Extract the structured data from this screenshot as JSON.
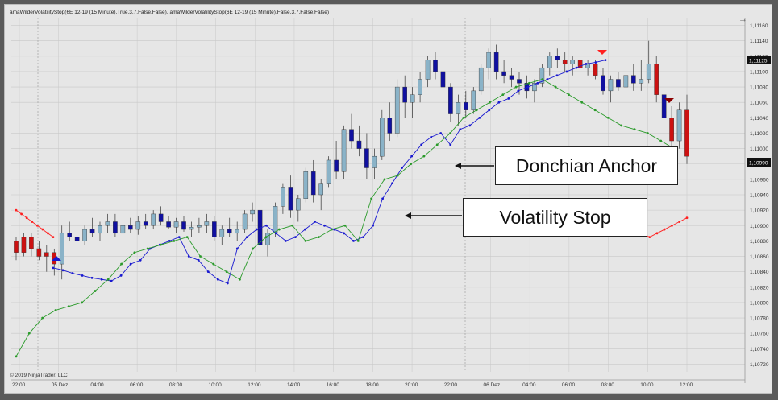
{
  "chart_data": {
    "type": "candlestick",
    "title": "amaWilderVolatilityStop(6E 12-19 (15 Minute),True,3,7,False,False), amaWilderVolatilityStop(6E 12-19 (15 Minute),False,3,7,False,False)",
    "copyright": "© 2019 NinjaTrader, LLC",
    "x_tick_labels": [
      "22:00",
      "05 Dez",
      "04:00",
      "06:00",
      "08:00",
      "10:00",
      "12:00",
      "14:00",
      "16:00",
      "18:00",
      "20:00",
      "22:00",
      "06 Dez",
      "04:00",
      "06:00",
      "08:00",
      "10:00",
      "12:00"
    ],
    "y_tick_labels": [
      "1,11160",
      "1,11140",
      "1,11120",
      "1,11100",
      "1,11080",
      "1,11060",
      "1,11040",
      "1,11020",
      "1,11000",
      "1,10980",
      "1,10960",
      "1,10940",
      "1,10920",
      "1,10900",
      "1,10880",
      "1,10860",
      "1,10840",
      "1,10820",
      "1,10800",
      "1,10780",
      "1,10760",
      "1,10740",
      "1,10720"
    ],
    "ylim": [
      1.1071,
      1.1117
    ],
    "price_markers": [
      "1,11125",
      "1,10990"
    ],
    "series": [
      {
        "name": "candles",
        "ohlc": [
          [
            1.1088,
            1.10885,
            1.10855,
            1.10865
          ],
          [
            1.10865,
            1.1089,
            1.1086,
            1.10885
          ],
          [
            1.10885,
            1.1089,
            1.1086,
            1.1087
          ],
          [
            1.1087,
            1.1088,
            1.10855,
            1.1086
          ],
          [
            1.1086,
            1.10875,
            1.1084,
            1.10865
          ],
          [
            1.10865,
            1.1087,
            1.10835,
            1.1085
          ],
          [
            1.1085,
            1.109,
            1.1083,
            1.1089
          ],
          [
            1.1089,
            1.10905,
            1.1088,
            1.10885
          ],
          [
            1.10885,
            1.1089,
            1.1087,
            1.1088
          ],
          [
            1.1088,
            1.109,
            1.10875,
            1.10895
          ],
          [
            1.10895,
            1.1091,
            1.10885,
            1.1089
          ],
          [
            1.1089,
            1.10905,
            1.1088,
            1.109
          ],
          [
            1.109,
            1.10915,
            1.1089,
            1.10905
          ],
          [
            1.10905,
            1.10915,
            1.10885,
            1.1089
          ],
          [
            1.1089,
            1.1091,
            1.1088,
            1.109
          ],
          [
            1.109,
            1.1091,
            1.1089,
            1.10895
          ],
          [
            1.10895,
            1.10912,
            1.10888,
            1.10905
          ],
          [
            1.10905,
            1.10915,
            1.10895,
            1.109
          ],
          [
            1.109,
            1.1092,
            1.10895,
            1.10915
          ],
          [
            1.10915,
            1.10925,
            1.109,
            1.10905
          ],
          [
            1.10905,
            1.10912,
            1.10895,
            1.10898
          ],
          [
            1.10898,
            1.1091,
            1.1089,
            1.10905
          ],
          [
            1.10905,
            1.10912,
            1.10892,
            1.10895
          ],
          [
            1.10895,
            1.10905,
            1.10885,
            1.10898
          ],
          [
            1.10898,
            1.1091,
            1.1089,
            1.109
          ],
          [
            1.109,
            1.10915,
            1.1089,
            1.10905
          ],
          [
            1.10905,
            1.10912,
            1.1088,
            1.10885
          ],
          [
            1.10885,
            1.109,
            1.10875,
            1.10895
          ],
          [
            1.10895,
            1.1091,
            1.10885,
            1.1089
          ],
          [
            1.1089,
            1.10905,
            1.1088,
            1.10895
          ],
          [
            1.10895,
            1.1092,
            1.1089,
            1.10915
          ],
          [
            1.10915,
            1.1093,
            1.10905,
            1.1092
          ],
          [
            1.1092,
            1.10925,
            1.1087,
            1.10875
          ],
          [
            1.10875,
            1.10895,
            1.1086,
            1.1089
          ],
          [
            1.1089,
            1.1093,
            1.10885,
            1.10925
          ],
          [
            1.10925,
            1.10955,
            1.10915,
            1.1095
          ],
          [
            1.1095,
            1.10965,
            1.1091,
            1.1092
          ],
          [
            1.1092,
            1.1094,
            1.10905,
            1.10935
          ],
          [
            1.10935,
            1.10975,
            1.1093,
            1.1097
          ],
          [
            1.1097,
            1.10985,
            1.1093,
            1.1094
          ],
          [
            1.1094,
            1.1096,
            1.1092,
            1.10955
          ],
          [
            1.10955,
            1.1099,
            1.1095,
            1.10985
          ],
          [
            1.10985,
            1.1101,
            1.1096,
            1.1097
          ],
          [
            1.1097,
            1.1103,
            1.1096,
            1.11025
          ],
          [
            1.11025,
            1.11045,
            1.11,
            1.1101
          ],
          [
            1.1101,
            1.1103,
            1.1099,
            1.11
          ],
          [
            1.11,
            1.1102,
            1.1096,
            1.10975
          ],
          [
            1.10975,
            1.11,
            1.1096,
            1.1099
          ],
          [
            1.1099,
            1.1105,
            1.10985,
            1.1104
          ],
          [
            1.1104,
            1.1106,
            1.1101,
            1.1102
          ],
          [
            1.1102,
            1.1109,
            1.11015,
            1.1108
          ],
          [
            1.1108,
            1.11095,
            1.1104,
            1.1106
          ],
          [
            1.1106,
            1.1108,
            1.1104,
            1.1107
          ],
          [
            1.1107,
            1.111,
            1.1106,
            1.1109
          ],
          [
            1.1109,
            1.1112,
            1.1108,
            1.11115
          ],
          [
            1.11115,
            1.11125,
            1.1109,
            1.111
          ],
          [
            1.111,
            1.1111,
            1.1107,
            1.1108
          ],
          [
            1.1108,
            1.11085,
            1.11035,
            1.11045
          ],
          [
            1.11045,
            1.1107,
            1.1103,
            1.1106
          ],
          [
            1.1106,
            1.11075,
            1.1104,
            1.1105
          ],
          [
            1.1105,
            1.1108,
            1.11045,
            1.11075
          ],
          [
            1.11075,
            1.1111,
            1.1107,
            1.11105
          ],
          [
            1.11105,
            1.1113,
            1.1109,
            1.11125
          ],
          [
            1.11125,
            1.11135,
            1.1109,
            1.111
          ],
          [
            1.111,
            1.11115,
            1.11085,
            1.11095
          ],
          [
            1.11095,
            1.11105,
            1.1108,
            1.1109
          ],
          [
            1.1109,
            1.111,
            1.1107,
            1.11085
          ],
          [
            1.11085,
            1.11095,
            1.11065,
            1.11075
          ],
          [
            1.11075,
            1.1109,
            1.1106,
            1.11085
          ],
          [
            1.11085,
            1.1111,
            1.1108,
            1.11105
          ],
          [
            1.11105,
            1.11125,
            1.11095,
            1.1112
          ],
          [
            1.1112,
            1.1113,
            1.11105,
            1.11115
          ],
          [
            1.11115,
            1.11125,
            1.111,
            1.1111
          ],
          [
            1.1111,
            1.1112,
            1.11095,
            1.11115
          ],
          [
            1.11115,
            1.1112,
            1.111,
            1.11105
          ],
          [
            1.11105,
            1.11115,
            1.11095,
            1.1111
          ],
          [
            1.1111,
            1.11115,
            1.1109,
            1.11095
          ],
          [
            1.11095,
            1.11105,
            1.1107,
            1.11075
          ],
          [
            1.11075,
            1.11095,
            1.1106,
            1.1109
          ],
          [
            1.1109,
            1.111,
            1.11075,
            1.1108
          ],
          [
            1.1108,
            1.111,
            1.1107,
            1.11095
          ],
          [
            1.11095,
            1.1111,
            1.11075,
            1.11085
          ],
          [
            1.11085,
            1.11115,
            1.11075,
            1.1109
          ],
          [
            1.1109,
            1.1114,
            1.11085,
            1.1111
          ],
          [
            1.1111,
            1.1112,
            1.1106,
            1.1107
          ],
          [
            1.1107,
            1.1108,
            1.1103,
            1.1104
          ],
          [
            1.1104,
            1.11055,
            1.11,
            1.1101
          ],
          [
            1.1101,
            1.1106,
            1.11,
            1.1105
          ],
          [
            1.1105,
            1.1107,
            1.1098,
            1.1099
          ]
        ]
      },
      {
        "name": "volatility_stop_upper",
        "values": [
          1.1092,
          1.10915,
          1.1091,
          1.10905,
          1.109,
          1.10895,
          1.1089,
          1.10885,
          1.1089,
          1.10895,
          1.109,
          1.10905,
          1.1091
        ]
      },
      {
        "name": "volatility_stop_lower",
        "values": [
          1.10845,
          1.10842,
          1.10838,
          1.10835,
          1.10832,
          1.1083,
          1.10828,
          1.10835,
          1.1085,
          1.10855,
          1.1087,
          1.10875,
          1.1088,
          1.10885,
          1.1086,
          1.10855,
          1.1084,
          1.1083,
          1.10825,
          1.1087,
          1.10885,
          1.10895,
          1.109,
          1.1089,
          1.1088,
          1.10885,
          1.10895,
          1.10905,
          1.109,
          1.10895,
          1.1089,
          1.1088,
          1.10885,
          1.109,
          1.10935,
          1.10955,
          1.10975,
          1.1099,
          1.11005,
          1.11015,
          1.1102,
          1.11005,
          1.11025,
          1.1103,
          1.1104,
          1.1105,
          1.1106,
          1.11065,
          1.11075,
          1.1108,
          1.11085,
          1.1109,
          1.11095,
          1.111,
          1.11105,
          1.1111,
          1.11112,
          1.11115
        ]
      },
      {
        "name": "donchian_anchor",
        "values": [
          1.1073,
          1.1076,
          1.1078,
          1.1079,
          1.10795,
          1.108,
          1.10815,
          1.1083,
          1.1085,
          1.10865,
          1.1087,
          1.10875,
          1.1088,
          1.10885,
          1.1086,
          1.1085,
          1.1084,
          1.1083,
          1.1087,
          1.10885,
          1.10895,
          1.109,
          1.1088,
          1.10885,
          1.10895,
          1.109,
          1.1088,
          1.10935,
          1.1096,
          1.10965,
          1.1098,
          1.1099,
          1.11005,
          1.1102,
          1.1104,
          1.1105,
          1.1106,
          1.1107,
          1.1108,
          1.11085,
          1.1109,
          1.1108,
          1.1107,
          1.1106,
          1.1105,
          1.1104,
          1.1103,
          1.11025,
          1.1102,
          1.1101,
          1.11
        ]
      }
    ],
    "annotations": [
      {
        "label": "Donchian Anchor"
      },
      {
        "label": "Volatility Stop"
      }
    ],
    "colors": {
      "bull_body": "#8ab3c8",
      "bear_body": "#1010a0",
      "red_body": "#cc1111",
      "stop_upper": "#ff2020",
      "stop_lower": "#1818d0",
      "donchian": "#2a9a2a",
      "background": "#e6e6e6",
      "grid": "#c8c8c8"
    }
  },
  "ui": {
    "scroll_icon": "arrow-right-icon"
  }
}
